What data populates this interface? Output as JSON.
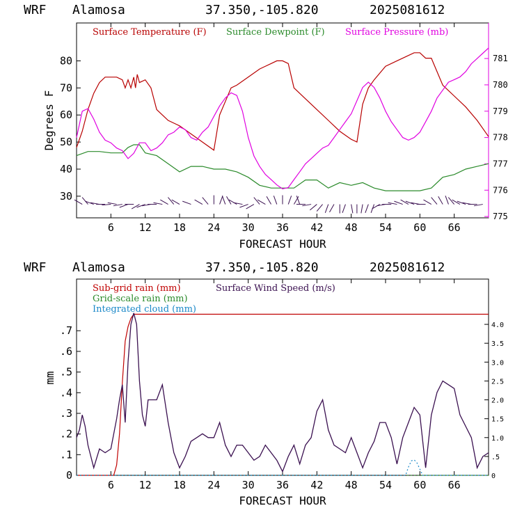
{
  "header": {
    "model": "WRF",
    "station": "Alamosa",
    "coords": "37.350,-105.820",
    "run": "2025081612"
  },
  "colors": {
    "temperature": "#b80000",
    "dewpoint": "#2a8a2a",
    "pressure": "#e000e0",
    "subgrid_rain": "#c00000",
    "gridscale_rain": "#2a8a2a",
    "cloud": "#1a88c8",
    "wind": "#3a1050",
    "axis": "#000000"
  },
  "chart_data": [
    {
      "type": "line",
      "xlabel": "FORECAST HOUR",
      "ylabel": "Degrees F",
      "xlim": [
        0,
        72
      ],
      "ylim": [
        22,
        94
      ],
      "y2lim": [
        774.95,
        782.35
      ],
      "x_ticks": [
        6,
        12,
        18,
        24,
        30,
        36,
        42,
        48,
        54,
        60,
        66
      ],
      "y_ticks": [
        30,
        40,
        50,
        60,
        70,
        80
      ],
      "y2_ticks": [
        775,
        776,
        777,
        778,
        779,
        780,
        781
      ],
      "legend_placement": "top",
      "series": [
        {
          "name": "Surface Temperature (F)",
          "axis": "left",
          "x": [
            0,
            1,
            2,
            3,
            4,
            5,
            6,
            7,
            8,
            8.5,
            9,
            9.5,
            10,
            10.3,
            10.6,
            11,
            12,
            13,
            14,
            15,
            16,
            18,
            20,
            22,
            24,
            25,
            26,
            27,
            28,
            30,
            32,
            34,
            35,
            36,
            37,
            38,
            40,
            42,
            44,
            46,
            48,
            49,
            50,
            51,
            52,
            54,
            56,
            58,
            59,
            60,
            61,
            62,
            63,
            64,
            66,
            68,
            70,
            72
          ],
          "y": [
            48,
            54,
            62,
            68,
            72,
            74,
            74,
            74,
            73,
            70,
            73,
            70,
            74,
            70,
            75,
            72,
            73,
            70,
            62,
            60,
            58,
            56,
            53,
            50,
            47,
            60,
            65,
            70,
            71,
            74,
            77,
            79,
            80,
            80,
            79,
            70,
            66,
            62,
            58,
            54,
            51,
            50,
            64,
            70,
            73,
            78,
            80,
            82,
            83,
            83,
            81,
            81,
            76,
            71,
            67,
            63,
            58,
            52
          ]
        },
        {
          "name": "Surface Dewpoint (F)",
          "axis": "left",
          "x": [
            0,
            2,
            4,
            6,
            8,
            9,
            10,
            11,
            12,
            14,
            16,
            18,
            20,
            22,
            24,
            26,
            28,
            30,
            32,
            34,
            36,
            38,
            40,
            42,
            44,
            46,
            48,
            50,
            52,
            54,
            56,
            58,
            60,
            62,
            64,
            66,
            68,
            70,
            72
          ],
          "y": [
            45,
            46.5,
            46.5,
            46,
            46,
            48,
            49,
            49,
            46,
            45,
            42,
            39,
            41,
            41,
            40,
            40,
            39,
            37,
            34,
            33,
            33,
            33,
            36,
            36,
            33,
            35,
            34,
            35,
            33,
            32,
            32,
            32,
            32,
            33,
            37,
            38,
            40,
            41,
            42
          ]
        },
        {
          "name": "Surface Pressure (mb)",
          "axis": "right",
          "x": [
            0,
            1,
            2,
            3,
            4,
            5,
            6,
            7,
            8,
            9,
            10,
            11,
            12,
            13,
            14,
            15,
            16,
            17,
            18,
            19,
            20,
            21,
            22,
            23,
            24,
            25,
            26,
            27,
            28,
            29,
            30,
            31,
            32,
            33,
            34,
            35,
            36,
            37,
            38,
            39,
            40,
            41,
            42,
            43,
            44,
            45,
            46,
            47,
            48,
            49,
            50,
            51,
            52,
            53,
            54,
            55,
            56,
            57,
            58,
            59,
            60,
            61,
            62,
            63,
            64,
            65,
            66,
            67,
            68,
            69,
            70,
            71,
            72
          ],
          "y": [
            778.0,
            779.0,
            779.1,
            778.7,
            778.2,
            777.9,
            777.8,
            777.6,
            777.5,
            777.2,
            777.4,
            777.8,
            777.8,
            777.5,
            777.6,
            777.8,
            778.1,
            778.2,
            778.4,
            778.3,
            778.0,
            777.9,
            778.2,
            778.4,
            778.8,
            779.2,
            779.5,
            779.7,
            779.6,
            779.0,
            778.0,
            777.3,
            776.9,
            776.6,
            776.4,
            776.2,
            776.05,
            776.1,
            776.4,
            776.7,
            777.0,
            777.2,
            777.4,
            777.6,
            777.7,
            778.0,
            778.3,
            778.6,
            778.9,
            779.4,
            779.9,
            780.1,
            779.9,
            779.5,
            779.0,
            778.6,
            778.3,
            778.0,
            777.9,
            778.0,
            778.2,
            778.6,
            779.0,
            779.5,
            779.8,
            780.1,
            780.2,
            780.3,
            780.5,
            780.8,
            781.0,
            781.2,
            781.4
          ]
        }
      ],
      "wind_barbs": {
        "y_level": 27,
        "x": [
          1,
          2,
          3,
          4,
          5,
          6,
          7,
          8,
          9,
          10,
          11,
          12,
          13,
          14,
          15,
          16,
          17,
          18,
          20,
          22,
          23,
          24,
          25,
          26,
          27,
          28,
          29,
          30,
          31,
          32,
          33,
          34,
          35,
          36,
          37,
          38,
          39,
          40,
          41,
          42,
          43,
          44,
          45,
          46,
          47,
          48,
          49,
          50,
          51,
          52,
          53,
          54,
          55,
          56,
          57,
          58,
          59,
          60,
          61,
          62,
          63,
          64,
          65,
          66,
          67,
          68,
          69,
          70,
          71
        ],
        "dir_deg": [
          300,
          320,
          290,
          280,
          270,
          265,
          280,
          260,
          250,
          270,
          240,
          250,
          260,
          270,
          280,
          300,
          320,
          300,
          290,
          300,
          320,
          0,
          20,
          340,
          330,
          300,
          280,
          250,
          240,
          320,
          300,
          330,
          340,
          0,
          20,
          30,
          340,
          270,
          260,
          230,
          220,
          200,
          210,
          180,
          200,
          170,
          180,
          190,
          200,
          200,
          240,
          260,
          270,
          280,
          290,
          300,
          290,
          280,
          270,
          300,
          320,
          330,
          340,
          320,
          300,
          290,
          280,
          270,
          260
        ]
      }
    },
    {
      "type": "line",
      "xlabel": "FORECAST HOUR",
      "ylabel": "mm",
      "xlim": [
        0,
        72
      ],
      "ylim": [
        0,
        0.95
      ],
      "y2lim": [
        0,
        5.2
      ],
      "x_ticks": [
        6,
        12,
        18,
        24,
        30,
        36,
        42,
        48,
        54,
        60,
        66
      ],
      "y_ticks": [
        0,
        0.1,
        0.2,
        0.3,
        0.4,
        0.5,
        0.6,
        0.7
      ],
      "y_tick_labels": [
        "0",
        ".1",
        ".2",
        ".3",
        ".4",
        ".5",
        ".6",
        ".7"
      ],
      "y2_ticks": [
        0,
        0.5,
        1.0,
        1.5,
        2.0,
        2.5,
        3.0,
        3.5,
        4.0
      ],
      "y2_tick_labels": [
        "0",
        ".5",
        "1.0",
        "1.5",
        "2.0",
        "2.5",
        "3.0",
        "3.5",
        "4.0"
      ],
      "legend_placement": "top-left",
      "series": [
        {
          "name": "Sub-grid rain (mm)",
          "axis": "left",
          "x": [
            0,
            6.5,
            7,
            7.5,
            8,
            8.5,
            9,
            9.5,
            10,
            11,
            12,
            72
          ],
          "y": [
            0,
            0,
            0.05,
            0.2,
            0.45,
            0.65,
            0.72,
            0.76,
            0.78,
            0.78,
            0.78,
            0.78
          ]
        },
        {
          "name": "Grid-scale rain (mm)",
          "axis": "left",
          "x": [
            0,
            72
          ],
          "y": [
            0,
            0
          ]
        },
        {
          "name": "Integrated cloud (mm)",
          "axis": "left",
          "x": [
            0,
            57.5,
            58,
            58.5,
            59,
            59.5,
            60,
            60.5,
            72
          ],
          "y": [
            0,
            0,
            0.04,
            0.07,
            0.075,
            0.06,
            0.03,
            0,
            0
          ]
        },
        {
          "name": "Surface Wind Speed (m/s)",
          "axis": "right",
          "x": [
            0,
            0.5,
            1,
            1.5,
            2,
            3,
            4,
            5,
            6,
            7,
            7.5,
            8,
            8.5,
            9,
            9.5,
            10,
            10.5,
            11,
            11.5,
            12,
            12.5,
            13,
            14,
            15,
            16,
            17,
            18,
            19,
            20,
            21,
            22,
            23,
            24,
            25,
            26,
            27,
            28,
            29,
            30,
            31,
            32,
            33,
            34,
            35,
            36,
            37,
            38,
            39,
            40,
            41,
            42,
            43,
            44,
            45,
            46,
            47,
            48,
            49,
            50,
            51,
            52,
            53,
            54,
            55,
            56,
            57,
            58,
            59,
            60,
            61,
            62,
            63,
            64,
            65,
            66,
            67,
            68,
            69,
            70,
            71,
            72
          ],
          "y": [
            1.0,
            1.2,
            1.6,
            1.3,
            0.8,
            0.2,
            0.7,
            0.6,
            0.7,
            1.5,
            2.0,
            2.4,
            1.4,
            3.0,
            4.0,
            4.3,
            4.0,
            2.5,
            1.6,
            1.3,
            2.0,
            2.0,
            2.0,
            2.4,
            1.4,
            0.6,
            0.2,
            0.5,
            0.9,
            1.0,
            1.1,
            1.0,
            1.0,
            1.4,
            0.8,
            0.5,
            0.8,
            0.8,
            0.6,
            0.4,
            0.5,
            0.8,
            0.6,
            0.4,
            0.1,
            0.5,
            0.8,
            0.3,
            0.8,
            1.0,
            1.7,
            2.0,
            1.2,
            0.8,
            0.7,
            0.6,
            1.0,
            0.6,
            0.2,
            0.6,
            0.9,
            1.4,
            1.4,
            1.0,
            0.3,
            1.0,
            1.4,
            1.8,
            1.6,
            0.2,
            1.6,
            2.2,
            2.5,
            2.4,
            2.3,
            1.6,
            1.3,
            1.0,
            0.2,
            0.5,
            0.6
          ]
        }
      ]
    }
  ]
}
